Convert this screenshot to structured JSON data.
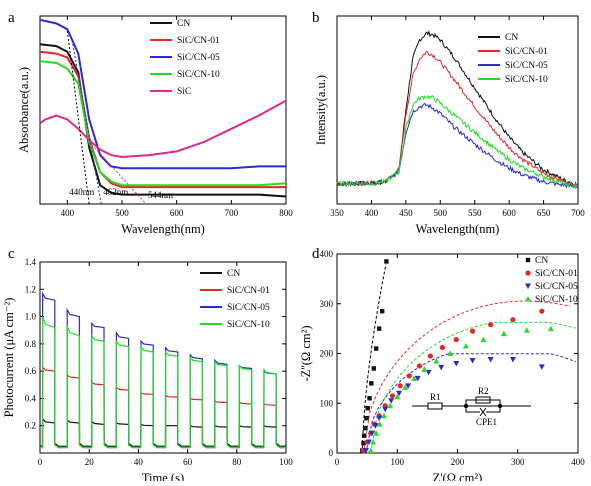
{
  "colors": {
    "CN": "#111111",
    "SiC/CN-01": "#e8262a",
    "SiC/CN-05": "#2a2ad6",
    "SiC/CN-10": "#22dd22",
    "SiC": "#e02890"
  },
  "chart_data": [
    {
      "id": "a",
      "type": "line",
      "panel_label": "a",
      "xlabel": "Wavelength(nm)",
      "ylabel": "Absorbance(a.u.)",
      "xlim": [
        350,
        800
      ],
      "ylim": [
        0,
        1
      ],
      "xticks": [
        400,
        500,
        600,
        700,
        800
      ],
      "legend_position": "top-right",
      "series": [
        {
          "name": "CN",
          "x": [
            350,
            380,
            400,
            420,
            440,
            460,
            480,
            500,
            550,
            600,
            650,
            700,
            750,
            800
          ],
          "y": [
            0.85,
            0.84,
            0.81,
            0.7,
            0.3,
            0.1,
            0.06,
            0.05,
            0.05,
            0.05,
            0.05,
            0.05,
            0.05,
            0.04
          ]
        },
        {
          "name": "SiC/CN-01",
          "x": [
            350,
            380,
            400,
            420,
            440,
            460,
            480,
            500,
            550,
            600,
            650,
            700,
            750,
            800
          ],
          "y": [
            0.81,
            0.8,
            0.78,
            0.68,
            0.35,
            0.17,
            0.11,
            0.09,
            0.09,
            0.09,
            0.09,
            0.09,
            0.09,
            0.09
          ]
        },
        {
          "name": "SiC/CN-05",
          "x": [
            350,
            380,
            400,
            420,
            440,
            460,
            480,
            500,
            550,
            600,
            650,
            700,
            750,
            800
          ],
          "y": [
            0.98,
            0.96,
            0.93,
            0.8,
            0.45,
            0.26,
            0.2,
            0.19,
            0.19,
            0.19,
            0.19,
            0.19,
            0.2,
            0.2
          ]
        },
        {
          "name": "SiC/CN-10",
          "x": [
            350,
            380,
            400,
            420,
            440,
            460,
            480,
            500,
            550,
            600,
            650,
            700,
            750,
            800
          ],
          "y": [
            0.76,
            0.75,
            0.72,
            0.64,
            0.33,
            0.17,
            0.12,
            0.1,
            0.1,
            0.1,
            0.1,
            0.1,
            0.1,
            0.11
          ]
        },
        {
          "name": "SiC",
          "x": [
            350,
            360,
            380,
            400,
            420,
            440,
            460,
            480,
            500,
            550,
            600,
            650,
            700,
            750,
            800
          ],
          "y": [
            0.43,
            0.45,
            0.47,
            0.45,
            0.4,
            0.34,
            0.29,
            0.26,
            0.25,
            0.26,
            0.28,
            0.33,
            0.4,
            0.47,
            0.55
          ]
        }
      ],
      "annotations": [
        {
          "text": "440nm",
          "x": 440
        },
        {
          "text": "462nm",
          "x": 462
        },
        {
          "text": "544nm",
          "x": 544
        }
      ]
    },
    {
      "id": "b",
      "type": "line",
      "panel_label": "b",
      "xlabel": "Wavelength(nm)",
      "ylabel": "Intensity(a.u.)",
      "xlim": [
        350,
        700
      ],
      "ylim": [
        0,
        1
      ],
      "xticks": [
        350,
        400,
        450,
        500,
        550,
        600,
        650,
        700
      ],
      "legend_position": "top-right",
      "series": [
        {
          "name": "CN",
          "x": [
            350,
            400,
            420,
            440,
            450,
            460,
            470,
            480,
            490,
            500,
            520,
            550,
            580,
            600,
            620,
            650,
            680,
            700
          ],
          "y": [
            0.12,
            0.12,
            0.13,
            0.2,
            0.55,
            0.85,
            0.96,
            1.0,
            0.99,
            0.96,
            0.86,
            0.68,
            0.5,
            0.39,
            0.3,
            0.2,
            0.14,
            0.11
          ]
        },
        {
          "name": "SiC/CN-01",
          "x": [
            350,
            400,
            420,
            440,
            450,
            460,
            470,
            480,
            490,
            500,
            520,
            550,
            580,
            600,
            620,
            650,
            680,
            700
          ],
          "y": [
            0.12,
            0.12,
            0.13,
            0.2,
            0.52,
            0.75,
            0.85,
            0.89,
            0.87,
            0.83,
            0.73,
            0.57,
            0.42,
            0.33,
            0.26,
            0.18,
            0.13,
            0.11
          ]
        },
        {
          "name": "SiC/CN-05",
          "x": [
            350,
            400,
            420,
            440,
            450,
            460,
            470,
            480,
            490,
            500,
            520,
            550,
            580,
            600,
            620,
            650,
            680,
            700
          ],
          "y": [
            0.12,
            0.12,
            0.13,
            0.19,
            0.42,
            0.54,
            0.57,
            0.58,
            0.56,
            0.53,
            0.45,
            0.35,
            0.26,
            0.21,
            0.17,
            0.13,
            0.11,
            0.1
          ]
        },
        {
          "name": "SiC/CN-10",
          "x": [
            350,
            400,
            420,
            440,
            450,
            460,
            470,
            480,
            490,
            500,
            520,
            550,
            580,
            600,
            620,
            650,
            680,
            700
          ],
          "y": [
            0.12,
            0.12,
            0.13,
            0.19,
            0.44,
            0.58,
            0.62,
            0.63,
            0.62,
            0.59,
            0.52,
            0.42,
            0.32,
            0.26,
            0.21,
            0.16,
            0.12,
            0.1
          ]
        }
      ]
    },
    {
      "id": "c",
      "type": "line",
      "panel_label": "c",
      "xlabel": "Time (s)",
      "ylabel": "Photocurrent (μA cm⁻²)",
      "xlim": [
        0,
        100
      ],
      "ylim": [
        0,
        1.4
      ],
      "xticks": [
        0,
        20,
        40,
        60,
        80,
        100
      ],
      "yticks": [
        0.2,
        0.4,
        0.6,
        0.8,
        1.0,
        1.2,
        1.4
      ],
      "legend_position": "top-right",
      "cycle_period_s": 10,
      "light_on_s": 5,
      "series": [
        {
          "name": "CN",
          "peak": [
            0.25,
            0.24,
            0.23,
            0.22,
            0.21,
            0.2,
            0.2,
            0.2,
            0.2,
            0.2
          ],
          "plateau": [
            0.22,
            0.22,
            0.21,
            0.21,
            0.2,
            0.2,
            0.19,
            0.19,
            0.19,
            0.19
          ],
          "dark": 0.05
        },
        {
          "name": "SiC/CN-01",
          "peak": [
            0.63,
            0.57,
            0.52,
            0.48,
            0.44,
            0.42,
            0.4,
            0.38,
            0.37,
            0.36
          ],
          "plateau": [
            0.6,
            0.55,
            0.5,
            0.46,
            0.43,
            0.41,
            0.39,
            0.37,
            0.36,
            0.35
          ],
          "dark": 0.04
        },
        {
          "name": "SiC/CN-05",
          "peak": [
            1.17,
            1.05,
            0.95,
            0.88,
            0.82,
            0.77,
            0.72,
            0.68,
            0.64,
            0.6
          ],
          "plateau": [
            1.12,
            1.0,
            0.92,
            0.84,
            0.79,
            0.74,
            0.69,
            0.65,
            0.62,
            0.58
          ],
          "dark": 0.04
        },
        {
          "name": "SiC/CN-10",
          "peak": [
            1.0,
            0.93,
            0.86,
            0.82,
            0.78,
            0.74,
            0.7,
            0.67,
            0.64,
            0.61
          ],
          "plateau": [
            0.92,
            0.86,
            0.82,
            0.78,
            0.74,
            0.71,
            0.67,
            0.64,
            0.61,
            0.58
          ],
          "dark": 0.04
        }
      ]
    },
    {
      "id": "d",
      "type": "scatter",
      "panel_label": "d",
      "xlabel": "Z'(Ω cm²)",
      "ylabel": "-Z''(Ω cm²)",
      "xlim": [
        0,
        400
      ],
      "ylim": [
        0,
        400
      ],
      "xticks": [
        0,
        100,
        200,
        300,
        400
      ],
      "yticks": [
        0,
        100,
        200,
        300,
        400
      ],
      "legend_position": "top-right",
      "series": [
        {
          "name": "CN",
          "marker": "square",
          "x": [
            42,
            44,
            45,
            47,
            49,
            51,
            54,
            57,
            61,
            65,
            70,
            75,
            82
          ],
          "y": [
            5,
            20,
            35,
            50,
            70,
            90,
            110,
            140,
            170,
            210,
            250,
            285,
            385
          ]
        },
        {
          "name": "SiC/CN-01",
          "marker": "circle",
          "x": [
            44,
            50,
            56,
            62,
            70,
            80,
            92,
            105,
            120,
            137,
            155,
            175,
            198,
            225,
            255,
            292,
            340
          ],
          "y": [
            5,
            22,
            40,
            58,
            75,
            95,
            115,
            135,
            155,
            175,
            195,
            212,
            228,
            245,
            258,
            268,
            285
          ]
        },
        {
          "name": "SiC/CN-05",
          "marker": "triangle-down",
          "x": [
            48,
            53,
            58,
            64,
            70,
            80,
            90,
            103,
            118,
            134,
            152,
            173,
            198,
            225,
            255,
            292,
            340
          ],
          "y": [
            5,
            22,
            40,
            55,
            70,
            88,
            105,
            120,
            135,
            150,
            162,
            172,
            180,
            186,
            188,
            188,
            173
          ]
        },
        {
          "name": "SiC/CN-10",
          "marker": "triangle-up",
          "x": [
            56,
            60,
            65,
            71,
            78,
            88,
            100,
            113,
            128,
            145,
            165,
            188,
            214,
            243,
            277,
            315,
            355
          ],
          "y": [
            5,
            22,
            40,
            58,
            75,
            95,
            113,
            132,
            150,
            168,
            185,
            200,
            215,
            228,
            240,
            247,
            250
          ]
        }
      ],
      "inset": {
        "labels": [
          "R1",
          "R2",
          "CPE1"
        ]
      }
    }
  ]
}
